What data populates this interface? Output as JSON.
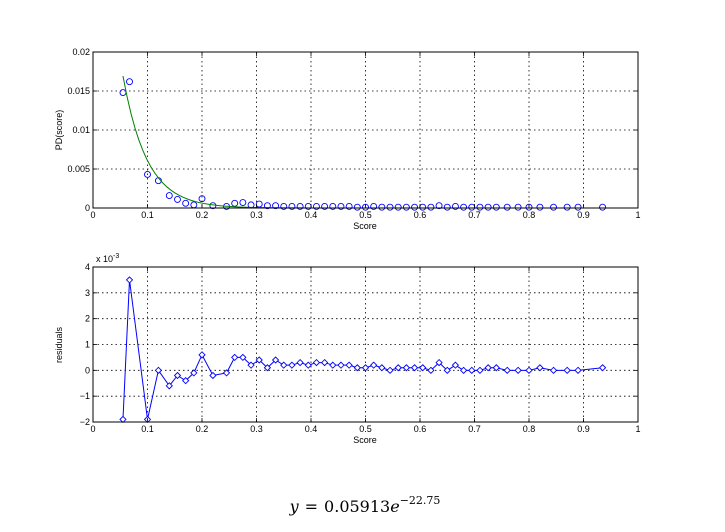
{
  "chart_data": [
    {
      "type": "scatter",
      "xlabel": "Score",
      "ylabel": "PD(score)",
      "xlim": [
        0,
        1
      ],
      "ylim": [
        0,
        0.02
      ],
      "xticks": [
        "0",
        "0.1",
        "0.2",
        "0.3",
        "0.4",
        "0.5",
        "0.6",
        "0.7",
        "0.8",
        "0.9",
        "1"
      ],
      "yticks": [
        "0",
        "0.005",
        "0.01",
        "0.015",
        "0.02"
      ],
      "grid": true,
      "series": [
        {
          "marker": "circle",
          "color": "#0000ff",
          "x": [
            0.055,
            0.067,
            0.1,
            0.12,
            0.14,
            0.155,
            0.17,
            0.185,
            0.2,
            0.22,
            0.245,
            0.26,
            0.275,
            0.29,
            0.305,
            0.32,
            0.335,
            0.35,
            0.365,
            0.38,
            0.395,
            0.41,
            0.425,
            0.44,
            0.455,
            0.47,
            0.485,
            0.5,
            0.515,
            0.53,
            0.545,
            0.56,
            0.575,
            0.59,
            0.605,
            0.62,
            0.635,
            0.65,
            0.665,
            0.68,
            0.695,
            0.71,
            0.725,
            0.74,
            0.76,
            0.78,
            0.8,
            0.82,
            0.845,
            0.87,
            0.89,
            0.935
          ],
          "y": [
            0.0148,
            0.0162,
            0.0043,
            0.0035,
            0.0016,
            0.0011,
            0.0006,
            0.0004,
            0.0012,
            0.0003,
            0.0002,
            0.0006,
            0.0007,
            0.0004,
            0.0005,
            0.0003,
            0.0003,
            0.0002,
            0.0002,
            0.0002,
            0.0002,
            0.0002,
            0.0002,
            0.0002,
            0.0002,
            0.0002,
            0.0001,
            0.0001,
            0.0002,
            0.0001,
            0.0001,
            0.0001,
            0.0001,
            0.0001,
            0.0001,
            0.0001,
            0.0003,
            0.0001,
            0.0002,
            0.0001,
            0.0001,
            0.0001,
            0.0001,
            0.0001,
            0.0001,
            0.0001,
            0.0001,
            0.0001,
            0.0001,
            0.0001,
            0.0001,
            0.0001
          ]
        },
        {
          "marker": "line",
          "color": "#008000",
          "fit": {
            "a": 0.05913,
            "b": -22.75
          },
          "x_range": [
            0.055,
            0.935
          ]
        }
      ]
    },
    {
      "type": "line",
      "xlabel": "Score",
      "ylabel": "residuals",
      "xlim": [
        0,
        1
      ],
      "ylim": [
        -2,
        4
      ],
      "y_multiplier": "x 10",
      "y_multiplier_exp": "-3",
      "xticks": [
        "0",
        "0.1",
        "0.2",
        "0.3",
        "0.4",
        "0.5",
        "0.6",
        "0.7",
        "0.8",
        "0.9",
        "1"
      ],
      "yticks": [
        "−2",
        "−1",
        "0",
        "1",
        "2",
        "3",
        "4"
      ],
      "grid": true,
      "series": [
        {
          "marker": "diamond",
          "color": "#0000ff",
          "x": [
            0.055,
            0.067,
            0.1,
            0.12,
            0.14,
            0.155,
            0.17,
            0.185,
            0.2,
            0.22,
            0.245,
            0.26,
            0.275,
            0.29,
            0.305,
            0.32,
            0.335,
            0.35,
            0.365,
            0.38,
            0.395,
            0.41,
            0.425,
            0.44,
            0.455,
            0.47,
            0.485,
            0.5,
            0.515,
            0.53,
            0.545,
            0.56,
            0.575,
            0.59,
            0.605,
            0.62,
            0.635,
            0.65,
            0.665,
            0.68,
            0.695,
            0.71,
            0.725,
            0.74,
            0.76,
            0.78,
            0.8,
            0.82,
            0.845,
            0.87,
            0.89,
            0.935
          ],
          "y": [
            -1.9,
            3.5,
            -1.9,
            0.0,
            -0.6,
            -0.2,
            -0.4,
            -0.1,
            0.6,
            -0.2,
            -0.1,
            0.5,
            0.5,
            0.2,
            0.4,
            0.1,
            0.4,
            0.2,
            0.2,
            0.3,
            0.2,
            0.3,
            0.3,
            0.2,
            0.2,
            0.2,
            0.1,
            0.1,
            0.2,
            0.1,
            0.0,
            0.1,
            0.1,
            0.1,
            0.1,
            0.0,
            0.3,
            0.0,
            0.2,
            0.0,
            0.0,
            0.0,
            0.1,
            0.1,
            0.0,
            0.0,
            0.0,
            0.1,
            0.0,
            0.0,
            0.0,
            0.1
          ]
        }
      ]
    }
  ],
  "equation": {
    "lhs": "y",
    "eq": "=",
    "coef": "0.05913",
    "base": "e",
    "exponent": "−22.75"
  }
}
